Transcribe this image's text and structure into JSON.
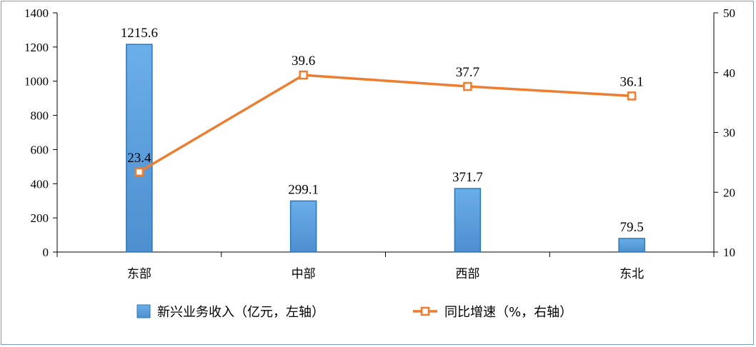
{
  "chart_data": {
    "type": "bar+line",
    "categories": [
      "东部",
      "中部",
      "西部",
      "东北"
    ],
    "series": [
      {
        "name": "新兴业务收入（亿元，左轴）",
        "type": "bar",
        "axis": "left",
        "values": [
          1215.6,
          299.1,
          371.7,
          79.5
        ],
        "labels": [
          "1215.6",
          "299.1",
          "371.7",
          "79.5"
        ],
        "color": "#5b9bd5"
      },
      {
        "name": "同比增速（%，右轴）",
        "type": "line",
        "axis": "right",
        "values": [
          23.4,
          39.6,
          37.7,
          36.1
        ],
        "labels": [
          "23.4",
          "39.6",
          "37.7",
          "36.1"
        ],
        "color": "#ed7d31"
      }
    ],
    "y_left": {
      "min": 0,
      "max": 1400,
      "ticks": [
        "0",
        "200",
        "400",
        "600",
        "800",
        "1000",
        "1200",
        "1400"
      ]
    },
    "y_right": {
      "min": 10,
      "max": 50,
      "ticks": [
        "10",
        "20",
        "30",
        "40",
        "50"
      ]
    },
    "legend_position": "bottom",
    "grid": false
  }
}
